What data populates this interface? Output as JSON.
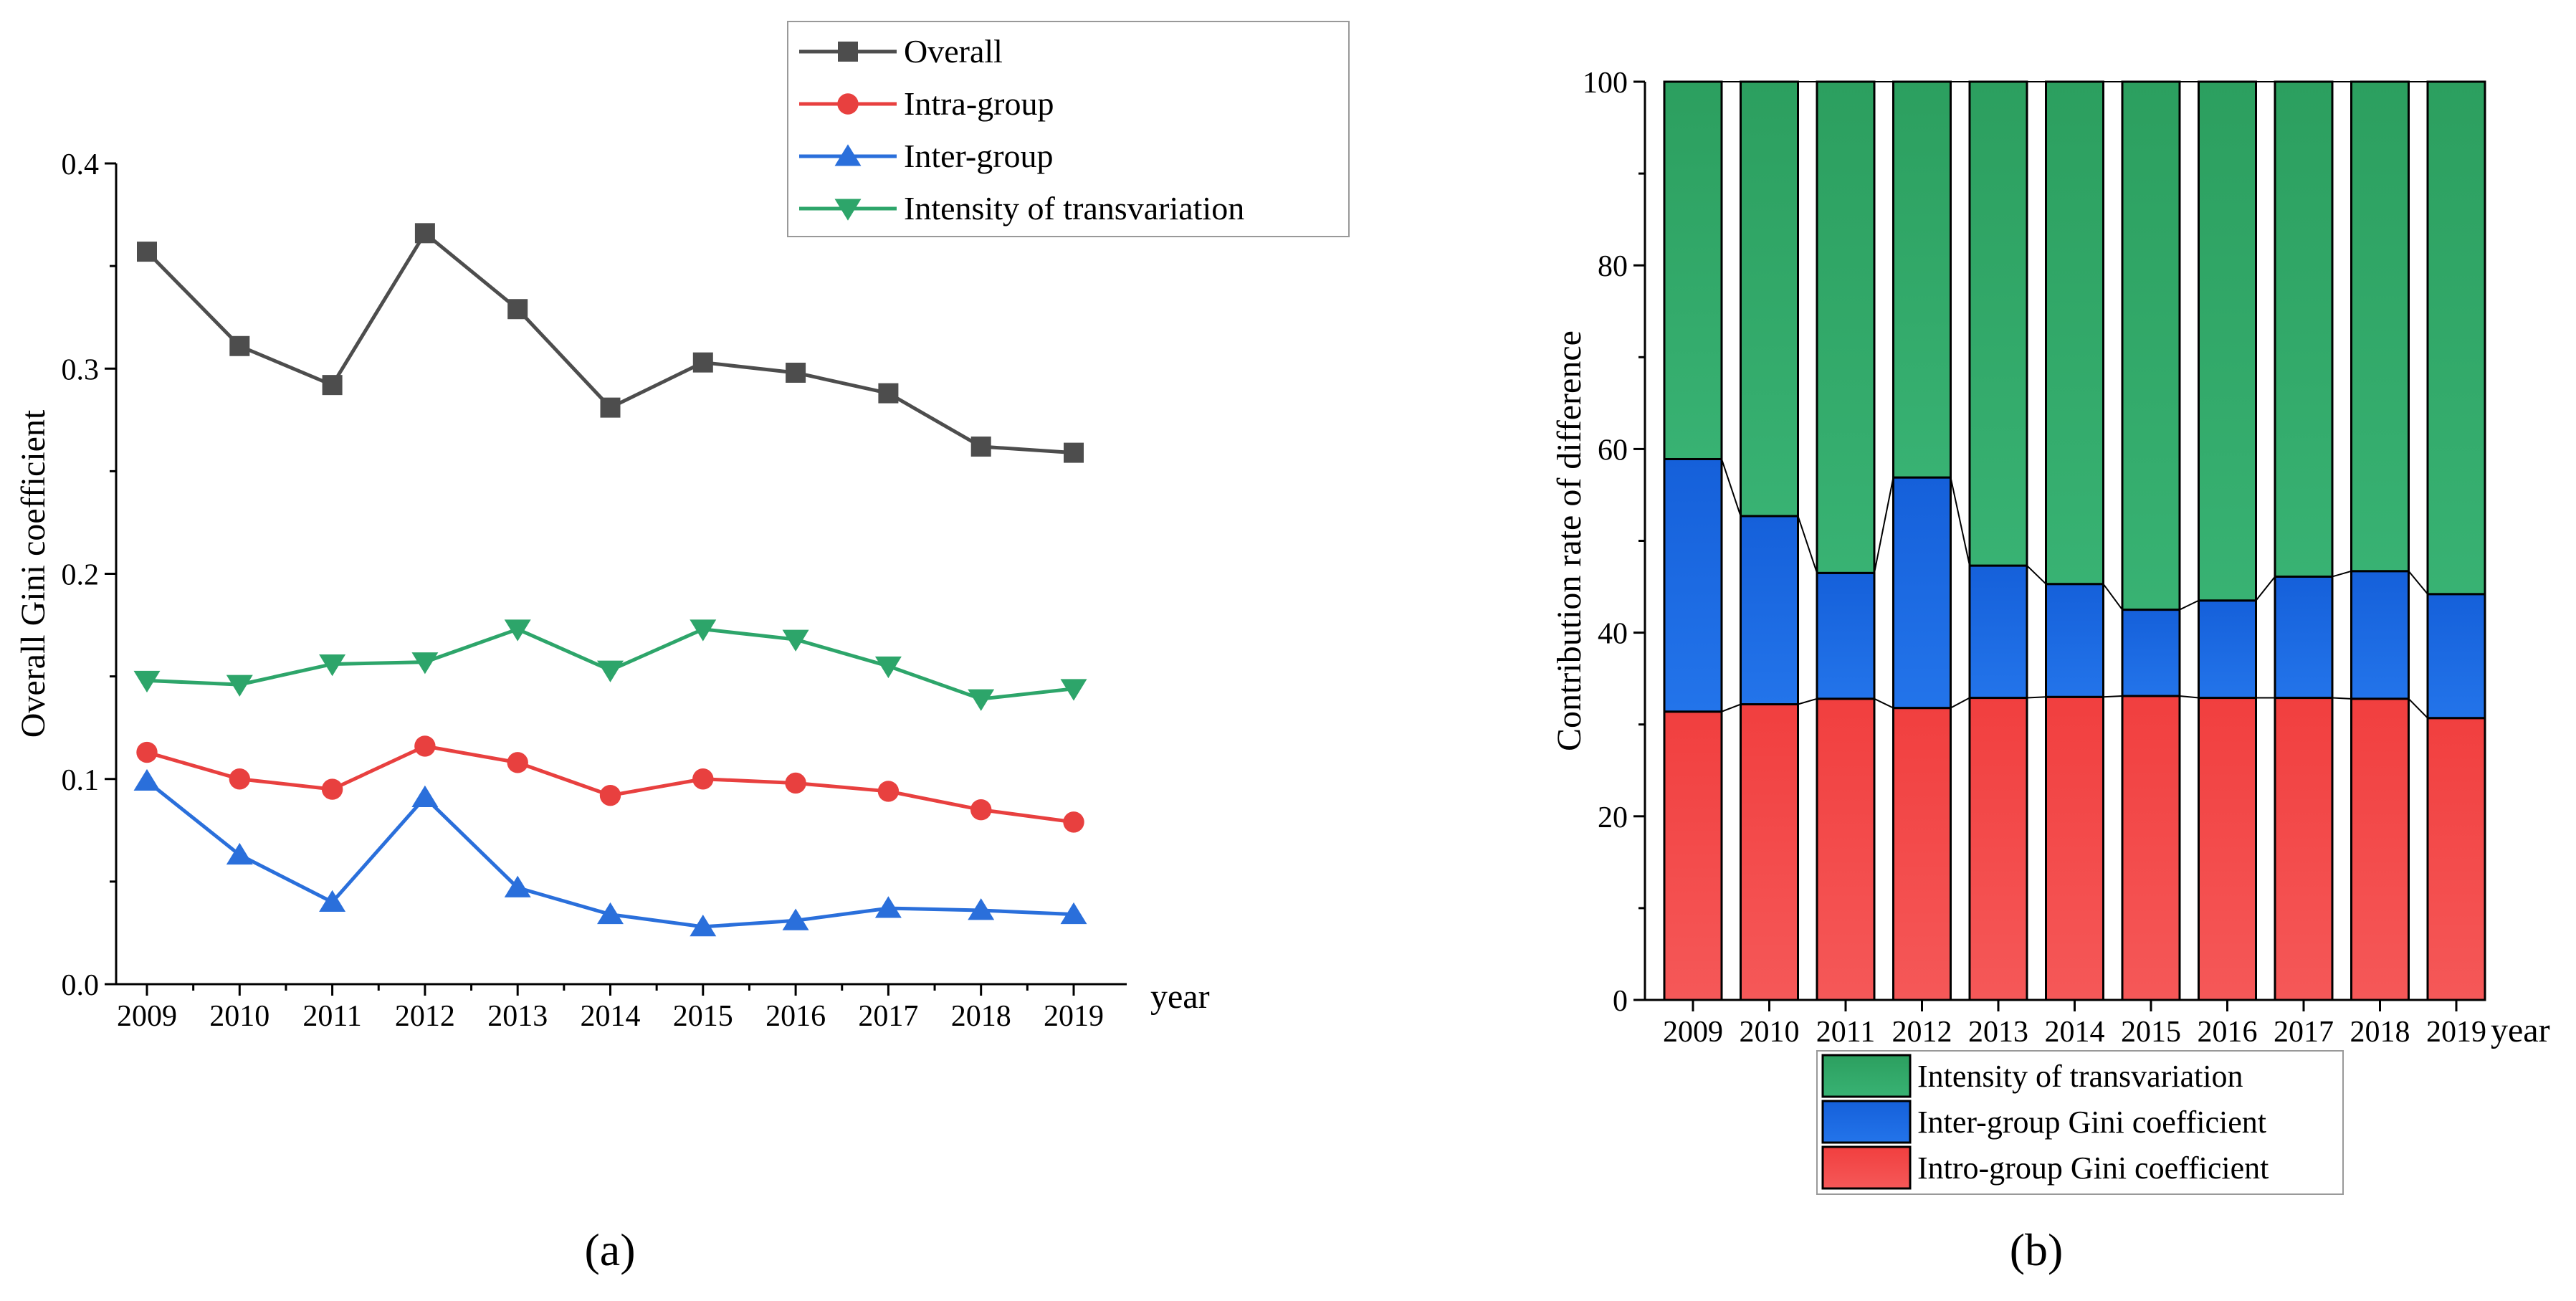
{
  "chart_data": [
    {
      "type": "line",
      "panel_label": "(a)",
      "title": "",
      "xlabel": "year",
      "ylabel": "Overall Gini coefficient",
      "ylim": [
        0,
        0.4
      ],
      "yticks": [
        "0.0",
        "0.1",
        "0.2",
        "0.3",
        "0.4"
      ],
      "categories": [
        "2009",
        "2010",
        "2011",
        "2012",
        "2013",
        "2014",
        "2015",
        "2016",
        "2017",
        "2018",
        "2019"
      ],
      "legend_position": "top-right",
      "series": [
        {
          "name": "Overall",
          "marker": "square",
          "color": "#4d4d4d",
          "values": [
            0.357,
            0.311,
            0.292,
            0.366,
            0.329,
            0.281,
            0.303,
            0.298,
            0.288,
            0.262,
            0.259
          ]
        },
        {
          "name": "Intra-group",
          "marker": "circle",
          "color": "#e8403f",
          "values": [
            0.113,
            0.1,
            0.095,
            0.116,
            0.108,
            0.092,
            0.1,
            0.098,
            0.094,
            0.085,
            0.079
          ]
        },
        {
          "name": "Inter-group",
          "marker": "triangle-up",
          "color": "#2a6fdb",
          "values": [
            0.099,
            0.063,
            0.04,
            0.091,
            0.047,
            0.034,
            0.028,
            0.031,
            0.037,
            0.036,
            0.034
          ]
        },
        {
          "name": "Intensity of transvariation",
          "marker": "triangle-down",
          "color": "#2da56a",
          "values": [
            0.148,
            0.146,
            0.156,
            0.157,
            0.173,
            0.153,
            0.173,
            0.168,
            0.155,
            0.139,
            0.144
          ]
        }
      ]
    },
    {
      "type": "bar",
      "stacked": true,
      "panel_label": "(b)",
      "title": "",
      "xlabel": "year",
      "ylabel": "Contribution rate of difference",
      "ylim": [
        0,
        100
      ],
      "yticks": [
        "0",
        "20",
        "40",
        "60",
        "80",
        "100"
      ],
      "categories": [
        "2009",
        "2010",
        "2011",
        "2012",
        "2013",
        "2014",
        "2015",
        "2016",
        "2017",
        "2018",
        "2019"
      ],
      "legend_position": "bottom",
      "series": [
        {
          "name": "Intro-group Gini coefficient",
          "color": "#f24444",
          "values": [
            31.4,
            32.2,
            32.8,
            31.8,
            32.9,
            33.0,
            33.1,
            32.9,
            32.9,
            32.8,
            30.7
          ]
        },
        {
          "name": "Inter-group Gini coefficient",
          "color": "#1866e0",
          "values": [
            27.5,
            20.5,
            13.7,
            25.1,
            14.4,
            12.3,
            9.4,
            10.6,
            13.2,
            13.9,
            13.5
          ]
        },
        {
          "name": "Intensity of transvariation",
          "color": "#30a866",
          "values": [
            41.1,
            47.3,
            53.5,
            43.1,
            52.7,
            54.7,
            57.5,
            56.5,
            53.9,
            53.3,
            55.8
          ]
        }
      ]
    }
  ]
}
